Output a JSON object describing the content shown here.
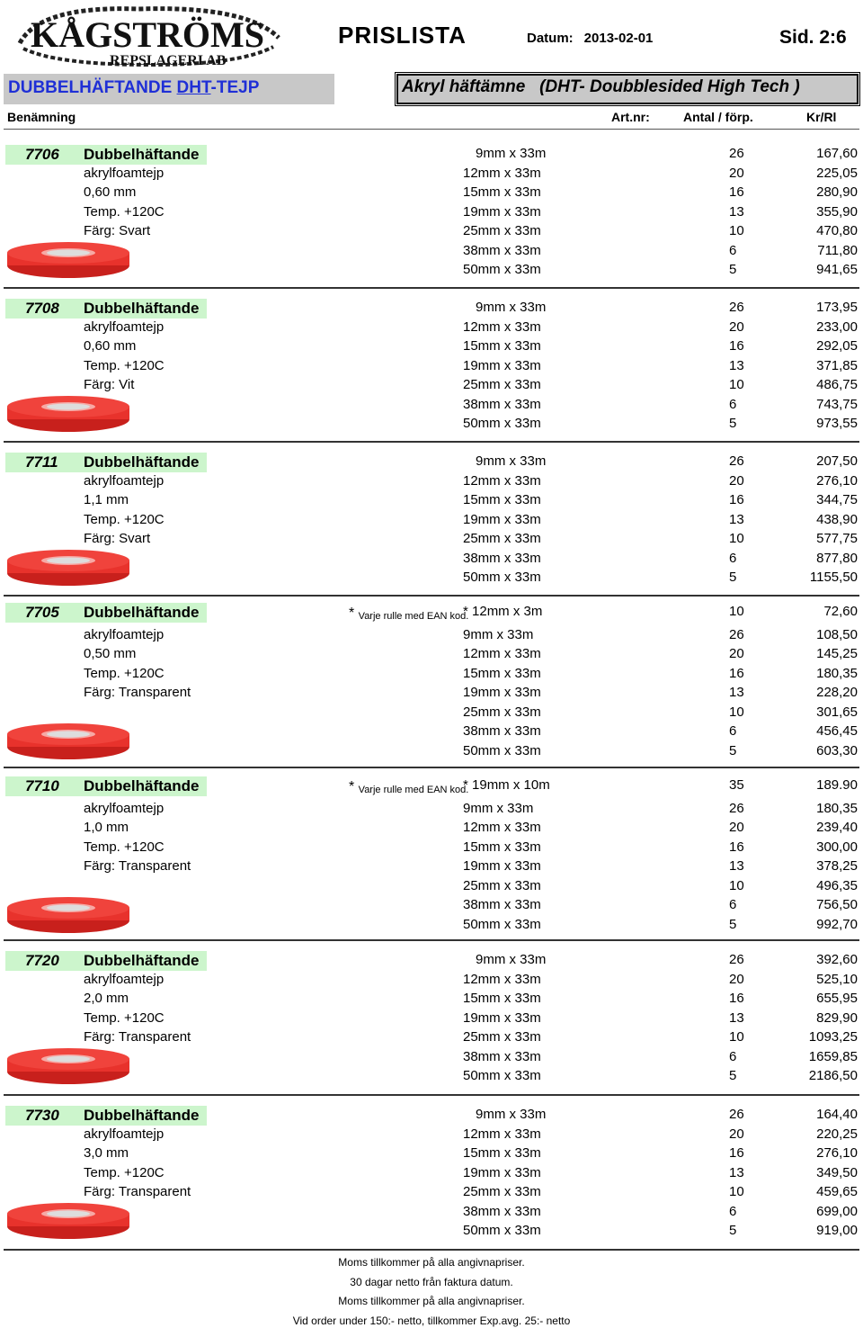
{
  "header": {
    "logo_text": "KÅGSTRÖMS",
    "logo_sub": "REPSLAGERI AB",
    "title": "PRISLISTA",
    "date_label": "Datum:",
    "date_value": "2013-02-01",
    "page": "Sid. 2:6"
  },
  "category": {
    "prefix": "DUBBELHÄFTANDE ",
    "underlined": "DHT",
    "suffix": "-TEJP",
    "description": "Akryl häftämne   (DHT- Doubblesided High Tech )"
  },
  "columns": {
    "name": "Benämning",
    "artnr": "Art.nr:",
    "qty": "Antal / förp.",
    "price": "Kr/Rl"
  },
  "colors": {
    "accent_blue": "#1f2fd6",
    "highlight_green": "#ccf5cc",
    "header_gray": "#c8c8c8",
    "tape_red": "#e8322c"
  },
  "products": [
    {
      "artnr": "7706",
      "title": "Dubbelhäftande",
      "specs": [
        "akrylfoamtejp",
        "0,60 mm",
        "Temp. +120C",
        "Färg: Svart"
      ],
      "note": "",
      "rows": [
        {
          "size": "9mm x 33m",
          "qty": "26",
          "price": "167,60"
        },
        {
          "size": "12mm x 33m",
          "qty": "20",
          "price": "225,05"
        },
        {
          "size": "15mm x 33m",
          "qty": "16",
          "price": "280,90"
        },
        {
          "size": "19mm x 33m",
          "qty": "13",
          "price": "355,90"
        },
        {
          "size": "25mm x 33m",
          "qty": "10",
          "price": "470,80"
        },
        {
          "size": "38mm x 33m",
          "qty": "6",
          "price": "711,80"
        },
        {
          "size": "50mm x 33m",
          "qty": "5",
          "price": "941,65"
        }
      ]
    },
    {
      "artnr": "7708",
      "title": "Dubbelhäftande",
      "specs": [
        "akrylfoamtejp",
        "0,60 mm",
        "Temp. +120C",
        "Färg: Vit"
      ],
      "note": "",
      "rows": [
        {
          "size": "9mm x 33m",
          "qty": "26",
          "price": "173,95"
        },
        {
          "size": "12mm x 33m",
          "qty": "20",
          "price": "233,00"
        },
        {
          "size": "15mm x 33m",
          "qty": "16",
          "price": "292,05"
        },
        {
          "size": "19mm x 33m",
          "qty": "13",
          "price": "371,85"
        },
        {
          "size": "25mm x 33m",
          "qty": "10",
          "price": "486,75"
        },
        {
          "size": "38mm x 33m",
          "qty": "6",
          "price": "743,75"
        },
        {
          "size": "50mm x 33m",
          "qty": "5",
          "price": "973,55"
        }
      ]
    },
    {
      "artnr": "7711",
      "title": "Dubbelhäftande",
      "specs": [
        "akrylfoamtejp",
        "1,1 mm",
        "Temp. +120C",
        "Färg: Svart"
      ],
      "note": "",
      "rows": [
        {
          "size": "9mm x 33m",
          "qty": "26",
          "price": "207,50"
        },
        {
          "size": "12mm x 33m",
          "qty": "20",
          "price": "276,10"
        },
        {
          "size": "15mm x 33m",
          "qty": "16",
          "price": "344,75"
        },
        {
          "size": "19mm x 33m",
          "qty": "13",
          "price": "438,90"
        },
        {
          "size": "25mm x 33m",
          "qty": "10",
          "price": "577,75"
        },
        {
          "size": "38mm x 33m",
          "qty": "6",
          "price": "877,80"
        },
        {
          "size": "50mm x 33m",
          "qty": "5",
          "price": "1155,50"
        }
      ]
    },
    {
      "artnr": "7705",
      "title": "Dubbelhäftande",
      "specs": [
        "akrylfoamtejp",
        "0,50 mm",
        "Temp. +120C",
        "Färg: Transparent"
      ],
      "note": "Varje rulle med EAN kod.",
      "rows": [
        {
          "size": "* 12mm x 3m",
          "qty": "10",
          "price": "72,60"
        },
        {
          "size": "9mm x 33m",
          "qty": "26",
          "price": "108,50"
        },
        {
          "size": "12mm x 33m",
          "qty": "20",
          "price": "145,25"
        },
        {
          "size": "15mm x 33m",
          "qty": "16",
          "price": "180,35"
        },
        {
          "size": "19mm x 33m",
          "qty": "13",
          "price": "228,20"
        },
        {
          "size": "25mm x 33m",
          "qty": "10",
          "price": "301,65"
        },
        {
          "size": "38mm x 33m",
          "qty": "6",
          "price": "456,45"
        },
        {
          "size": "50mm x 33m",
          "qty": "5",
          "price": "603,30"
        }
      ]
    },
    {
      "artnr": "7710",
      "title": "Dubbelhäftande",
      "specs": [
        "akrylfoamtejp",
        "1,0 mm",
        "Temp. +120C",
        "Färg: Transparent"
      ],
      "note": "Varje rulle med EAN kod.",
      "rows": [
        {
          "size": "* 19mm x 10m",
          "qty": "35",
          "price": "189.90"
        },
        {
          "size": "9mm x 33m",
          "qty": "26",
          "price": "180,35"
        },
        {
          "size": "12mm x 33m",
          "qty": "20",
          "price": "239,40"
        },
        {
          "size": "15mm x 33m",
          "qty": "16",
          "price": "300,00"
        },
        {
          "size": "19mm x 33m",
          "qty": "13",
          "price": "378,25"
        },
        {
          "size": "25mm x 33m",
          "qty": "10",
          "price": "496,35"
        },
        {
          "size": "38mm x 33m",
          "qty": "6",
          "price": "756,50"
        },
        {
          "size": "50mm x 33m",
          "qty": "5",
          "price": "992,70"
        }
      ]
    },
    {
      "artnr": "7720",
      "title": "Dubbelhäftande",
      "specs": [
        "akrylfoamtejp",
        "2,0 mm",
        "Temp. +120C",
        "Färg: Transparent"
      ],
      "note": "",
      "rows": [
        {
          "size": "9mm x 33m",
          "qty": "26",
          "price": "392,60"
        },
        {
          "size": "12mm x 33m",
          "qty": "20",
          "price": "525,10"
        },
        {
          "size": "15mm x 33m",
          "qty": "16",
          "price": "655,95"
        },
        {
          "size": "19mm x 33m",
          "qty": "13",
          "price": "829,90"
        },
        {
          "size": "25mm x 33m",
          "qty": "10",
          "price": "1093,25"
        },
        {
          "size": "38mm x 33m",
          "qty": "6",
          "price": "1659,85"
        },
        {
          "size": "50mm x 33m",
          "qty": "5",
          "price": "2186,50"
        }
      ]
    },
    {
      "artnr": "7730",
      "title": "Dubbelhäftande",
      "specs": [
        "akrylfoamtejp",
        "3,0 mm",
        "Temp. +120C",
        "Färg: Transparent"
      ],
      "note": "",
      "rows": [
        {
          "size": "9mm x 33m",
          "qty": "26",
          "price": "164,40"
        },
        {
          "size": "12mm x 33m",
          "qty": "20",
          "price": "220,25"
        },
        {
          "size": "15mm x 33m",
          "qty": "16",
          "price": "276,10"
        },
        {
          "size": "19mm x 33m",
          "qty": "13",
          "price": "349,50"
        },
        {
          "size": "25mm x 33m",
          "qty": "10",
          "price": "459,65"
        },
        {
          "size": "38mm x 33m",
          "qty": "6",
          "price": "699,00"
        },
        {
          "size": "50mm x 33m",
          "qty": "5",
          "price": "919,00"
        }
      ]
    }
  ],
  "footer": [
    "Moms tillkommer på alla angivnapriser.",
    "30 dagar netto från faktura datum.",
    "Moms tillkommer på alla angivnapriser.",
    "Vid order under 150:- netto, tillkommer Exp.avg. 25:- netto"
  ]
}
